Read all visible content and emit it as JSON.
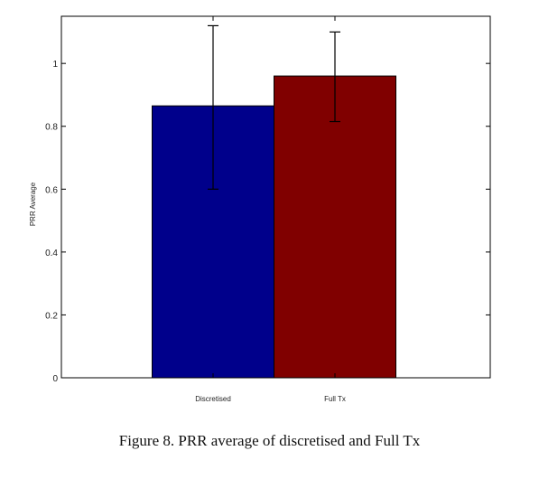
{
  "caption": "Figure 8. PRR average of discretised and Full Tx",
  "chart_data": {
    "type": "bar",
    "title": "",
    "xlabel": "",
    "ylabel": "PRR Average",
    "categories": [
      "Discretised",
      "Full Tx"
    ],
    "values": [
      0.865,
      0.96
    ],
    "errors": [
      {
        "low": 0.6,
        "high": 1.12
      },
      {
        "low": 0.815,
        "high": 1.1
      }
    ],
    "bar_colors": [
      "#00008b",
      "#800000"
    ],
    "ylim": [
      0,
      1.15
    ],
    "yticks": [
      {
        "value": 0,
        "label": "0"
      },
      {
        "value": 0.2,
        "label": "0.2"
      },
      {
        "value": 0.4,
        "label": "0.4"
      },
      {
        "value": 0.6,
        "label": "0.6"
      },
      {
        "value": 0.8,
        "label": "0.8"
      },
      {
        "value": 1,
        "label": "1"
      }
    ],
    "grid": false,
    "legend": "none"
  }
}
